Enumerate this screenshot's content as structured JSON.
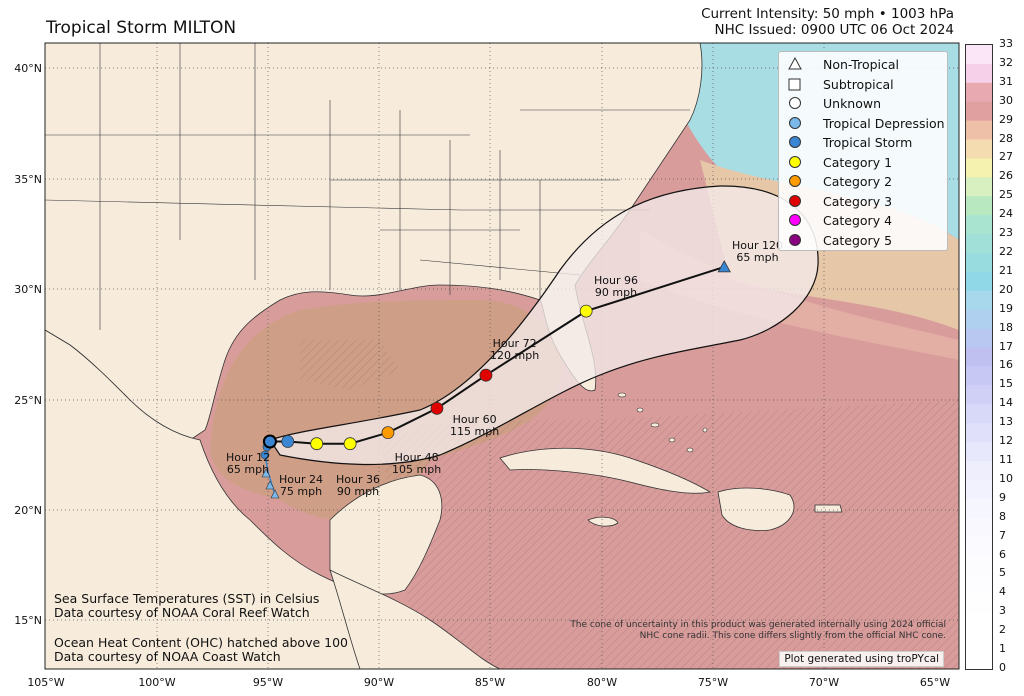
{
  "header": {
    "title": "Tropical Storm MILTON",
    "intensity": "Current Intensity: 50 mph • 1003 hPa",
    "issued": "NHC Issued: 0900 UTC 06 Oct 2024"
  },
  "axes": {
    "lat_labels": [
      "40°N",
      "35°N",
      "30°N",
      "25°N",
      "20°N",
      "15°N"
    ],
    "lon_labels": [
      "105°W",
      "100°W",
      "95°W",
      "90°W",
      "85°W",
      "80°W",
      "75°W",
      "70°W",
      "65°W"
    ]
  },
  "legend": {
    "items": [
      {
        "label": "Non-Tropical",
        "shape": "triangle",
        "color": "#ffffff"
      },
      {
        "label": "Subtropical",
        "shape": "square",
        "color": "#ffffff"
      },
      {
        "label": "Unknown",
        "shape": "circle",
        "color": "#ffffff"
      },
      {
        "label": "Tropical Depression",
        "shape": "circle",
        "color": "#7ab8ea"
      },
      {
        "label": "Tropical Storm",
        "shape": "circle",
        "color": "#3a86d2"
      },
      {
        "label": "Category 1",
        "shape": "circle",
        "color": "#ffff00"
      },
      {
        "label": "Category 2",
        "shape": "circle",
        "color": "#ff9a00"
      },
      {
        "label": "Category 3",
        "shape": "circle",
        "color": "#e00000"
      },
      {
        "label": "Category 4",
        "shape": "circle",
        "color": "#ff00ff"
      },
      {
        "label": "Category 5",
        "shape": "circle",
        "color": "#8a0080"
      }
    ]
  },
  "forecast_points": [
    {
      "lon": -94.9,
      "lat": 23.1,
      "cat": "TS",
      "hour": "",
      "wind": ""
    },
    {
      "lon": -94.1,
      "lat": 23.1,
      "cat": "TS",
      "hour": "Hour 12",
      "wind": "65 mph"
    },
    {
      "lon": -92.8,
      "lat": 23.0,
      "cat": "C1",
      "hour": "Hour 24",
      "wind": "75 mph"
    },
    {
      "lon": -91.3,
      "lat": 23.0,
      "cat": "C1",
      "hour": "Hour 36",
      "wind": "90 mph"
    },
    {
      "lon": -89.6,
      "lat": 23.5,
      "cat": "C2",
      "hour": "Hour 48",
      "wind": "105 mph"
    },
    {
      "lon": -87.4,
      "lat": 24.6,
      "cat": "C3",
      "hour": "Hour 60",
      "wind": "115 mph"
    },
    {
      "lon": -85.2,
      "lat": 26.1,
      "cat": "C3",
      "hour": "Hour 72",
      "wind": "120 mph"
    },
    {
      "lon": -80.7,
      "lat": 29.0,
      "cat": "C1",
      "hour": "Hour 96",
      "wind": "90 mph"
    },
    {
      "lon": -74.5,
      "lat": 31.0,
      "cat": "NT",
      "hour": "Hour 120",
      "wind": "65 mph"
    }
  ],
  "colorbar": {
    "labels": [
      "33",
      "32",
      "31",
      "30",
      "29",
      "28",
      "27",
      "26",
      "25",
      "24",
      "23",
      "22",
      "21",
      "20",
      "19",
      "18",
      "17",
      "16",
      "15",
      "14",
      "13",
      "12",
      "11",
      "10",
      "9",
      "8",
      "7",
      "6",
      "5",
      "4",
      "3",
      "2",
      "1",
      "0"
    ]
  },
  "notes": {
    "sst_line1": "Sea Surface Temperatures (SST) in Celsius",
    "sst_line2": "Data courtesy of NOAA Coral Reef Watch",
    "ohc_line1": "Ocean Heat Content (OHC) hatched above 100",
    "ohc_line2": "Data courtesy of NOAA Coast Watch",
    "cone_line1": "The cone of uncertainty in this product was generated internally using 2024 official",
    "cone_line2": "NHC cone radii. This cone differs slightly from the official NHC cone.",
    "credit": "Plot generated using troPYcal"
  },
  "colors": {
    "land": "#f7ecdc",
    "ocean_warm": "#d79a99",
    "gulf": "#cf9a84",
    "ocean_cool": "#9fd7e0",
    "cone_fill": "#f3eaea"
  }
}
